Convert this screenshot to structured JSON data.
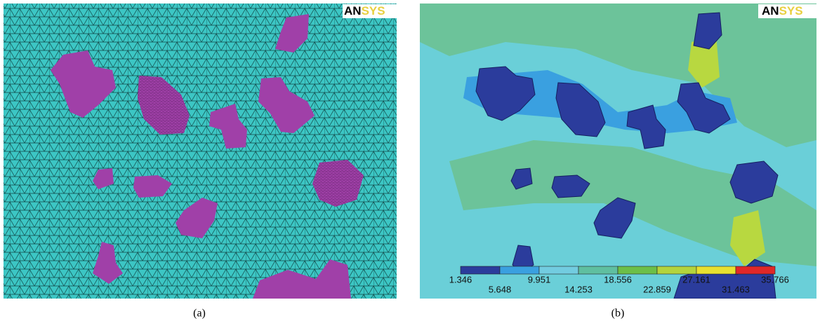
{
  "panels": [
    {
      "logo": [
        "AN",
        "SYS"
      ],
      "caption": "(a)"
    },
    {
      "logo": [
        "AN",
        "SYS"
      ],
      "caption": "(b)",
      "legend": {
        "ticks": [
          "1.346",
          "5.648",
          "9.951",
          "14.253",
          "18.556",
          "22.859",
          "27.161",
          "31.463",
          "35.766"
        ],
        "colors": [
          "#2b3c9c",
          "#3aa0e0",
          "#72cce0",
          "#5fbfa0",
          "#6cbf48",
          "#b4d43c",
          "#e8e030",
          "#e02828"
        ]
      }
    }
  ]
}
